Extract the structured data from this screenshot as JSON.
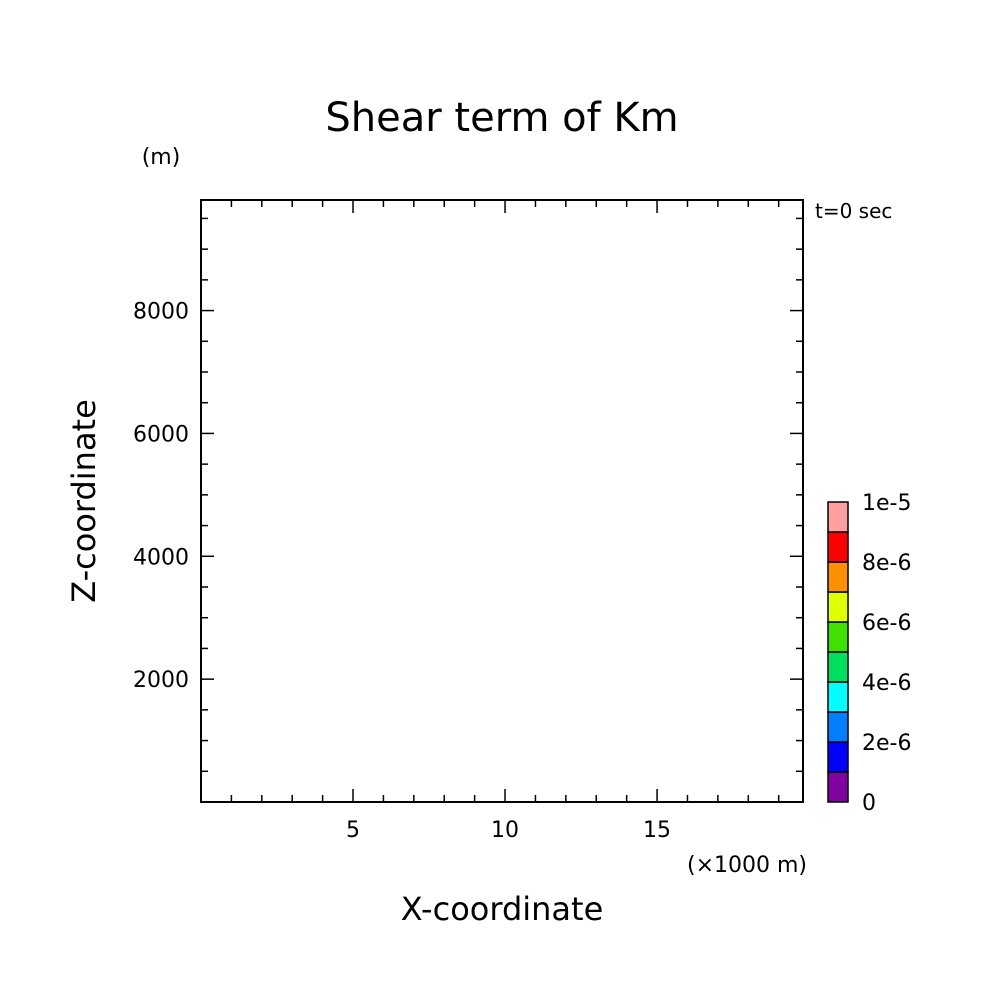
{
  "chart_data": {
    "type": "heatmap",
    "title": "Shear term of Km",
    "xlabel": "X-coordinate",
    "ylabel": "Z-coordinate",
    "x_unit": "(×1000 m)",
    "y_unit": "(m)",
    "time_label": "t=0 sec",
    "xlim": [
      0,
      19.8
    ],
    "ylim": [
      0,
      9800
    ],
    "x_ticks_major": [
      5,
      10,
      15
    ],
    "x_ticks_minor": [
      1,
      2,
      3,
      4,
      6,
      7,
      8,
      9,
      11,
      12,
      13,
      14,
      16,
      17,
      18,
      19
    ],
    "y_ticks_major": [
      2000,
      4000,
      6000,
      8000
    ],
    "y_ticks_minor": [
      500,
      1000,
      1500,
      2500,
      3000,
      3500,
      4500,
      5000,
      5500,
      6500,
      7000,
      7500,
      8500,
      9000,
      9500
    ],
    "field_values": [],
    "colorbar": {
      "levels": [
        0,
        1e-06,
        2e-06,
        3e-06,
        4e-06,
        5e-06,
        6e-06,
        7e-06,
        8e-06,
        9e-06,
        1e-05
      ],
      "colors": [
        "#8000a0",
        "#0000ff",
        "#0080ff",
        "#00ffff",
        "#00e060",
        "#40e000",
        "#e0ff00",
        "#ff9000",
        "#ff0000",
        "#ffa0a0"
      ],
      "labels": [
        "0",
        "2e-6",
        "4e-6",
        "6e-6",
        "8e-6",
        "1e-5"
      ]
    },
    "grid": false
  }
}
